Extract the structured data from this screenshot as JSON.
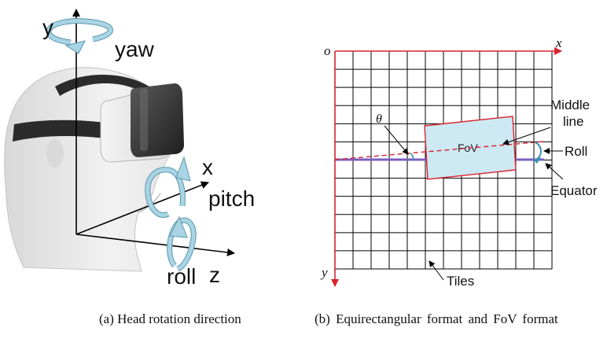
{
  "panel_a": {
    "axis_y_label": "y",
    "axis_x_label": "x",
    "axis_z_label": "z",
    "yaw_label": "yaw",
    "pitch_label": "pitch",
    "roll_label": "roll",
    "caption": "(a) Head rotation direction"
  },
  "panel_b": {
    "origin_label": "o",
    "x_label": "x",
    "y_label": "y",
    "theta_label": "θ",
    "fov_label": "FoV",
    "middle_line_label_1": "Middle",
    "middle_line_label_2": "line",
    "roll_label": "Roll",
    "equator_label": "Equator",
    "tiles_label": "Tiles",
    "grid_columns": 12,
    "grid_rows": 12,
    "caption": "(b) Equirectangular format and FoV format"
  },
  "colors": {
    "rotation_arrow": "#a9d4e4",
    "rotation_arrow_stroke": "#5a97ad",
    "grid_line": "#000000",
    "axis_red": "#d9232e",
    "equator": "#7a5fc0",
    "fov_fill": "#cde9f3",
    "fov_stroke": "#d9232e"
  }
}
